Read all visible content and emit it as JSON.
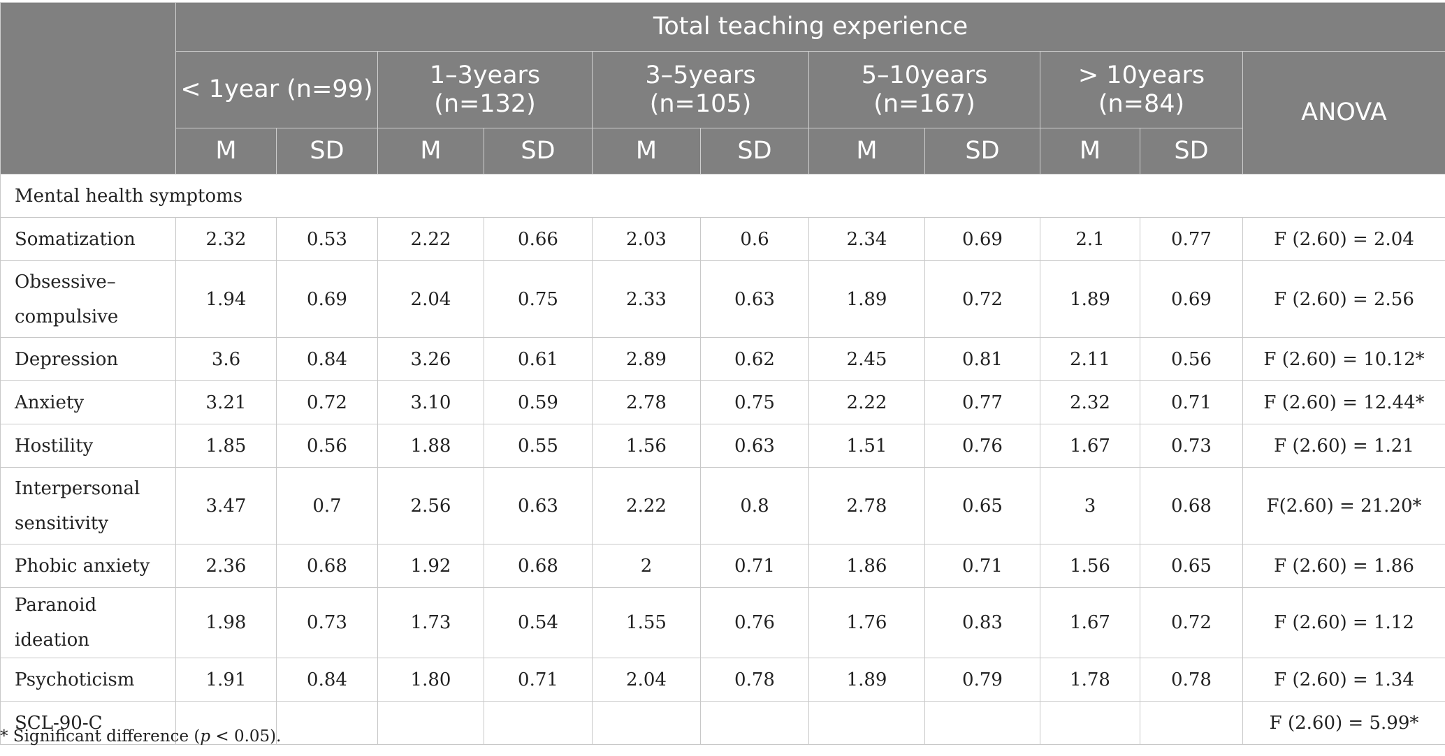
{
  "header": {
    "group_title": "Total teaching experience",
    "groups": [
      "< 1year (n=99)",
      "1–3years (n=132)",
      "3–5years (n=105)",
      "5–10years (n=167)",
      "> 10years (n=84)"
    ],
    "m_label": "M",
    "sd_label": "SD",
    "anova_label": "ANOVA"
  },
  "section_label": "Mental health symptoms",
  "rows": [
    {
      "label": "Somatization",
      "values": [
        "2.32",
        "0.53",
        "2.22",
        "0.66",
        "2.03",
        "0.6",
        "2.34",
        "0.69",
        "2.1",
        "0.77"
      ],
      "anova": "F (2.60) = 2.04"
    },
    {
      "label": "Obsessive–compulsive",
      "values": [
        "1.94",
        "0.69",
        "2.04",
        "0.75",
        "2.33",
        "0.63",
        "1.89",
        "0.72",
        "1.89",
        "0.69"
      ],
      "anova": "F (2.60) = 2.56"
    },
    {
      "label": "Depression",
      "values": [
        "3.6",
        "0.84",
        "3.26",
        "0.61",
        "2.89",
        "0.62",
        "2.45",
        "0.81",
        "2.11",
        "0.56"
      ],
      "anova": "F (2.60) = 10.12*"
    },
    {
      "label": "Anxiety",
      "values": [
        "3.21",
        "0.72",
        "3.10",
        "0.59",
        "2.78",
        "0.75",
        "2.22",
        "0.77",
        "2.32",
        "0.71"
      ],
      "anova": "F (2.60) = 12.44*"
    },
    {
      "label": "Hostility",
      "values": [
        "1.85",
        "0.56",
        "1.88",
        "0.55",
        "1.56",
        "0.63",
        "1.51",
        "0.76",
        "1.67",
        "0.73"
      ],
      "anova": "F (2.60) = 1.21"
    },
    {
      "label": "Interpersonal sensitivity",
      "values": [
        "3.47",
        "0.7",
        "2.56",
        "0.63",
        "2.22",
        "0.8",
        "2.78",
        "0.65",
        "3",
        "0.68"
      ],
      "anova": "F(2.60) = 21.20*"
    },
    {
      "label": "Phobic anxiety",
      "values": [
        "2.36",
        "0.68",
        "1.92",
        "0.68",
        "2",
        "0.71",
        "1.86",
        "0.71",
        "1.56",
        "0.65"
      ],
      "anova": "F (2.60) = 1.86"
    },
    {
      "label": "Paranoid ideation",
      "values": [
        "1.98",
        "0.73",
        "1.73",
        "0.54",
        "1.55",
        "0.76",
        "1.76",
        "0.83",
        "1.67",
        "0.72"
      ],
      "anova": "F (2.60) = 1.12"
    },
    {
      "label": "Psychoticism",
      "values": [
        "1.91",
        "0.84",
        "1.80",
        "0.71",
        "2.04",
        "0.78",
        "1.89",
        "0.79",
        "1.78",
        "0.78"
      ],
      "anova": "F (2.60) = 1.34"
    },
    {
      "label": "SCL-90-C",
      "values": [
        "",
        "",
        "",
        "",
        "",
        "",
        "",
        "",
        "",
        ""
      ],
      "anova": "F (2.60) = 5.99*"
    }
  ],
  "footnote": {
    "prefix": "* Significant difference (",
    "p": "p",
    "suffix": " < 0.05)."
  }
}
